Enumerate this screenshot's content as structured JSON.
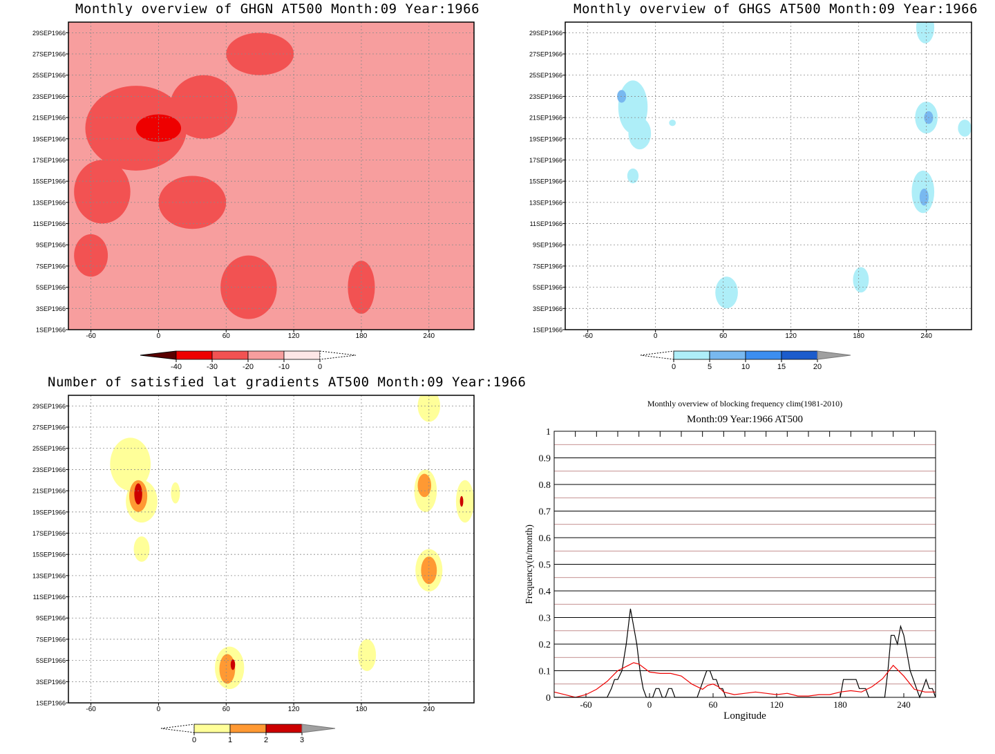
{
  "chart_data": [
    {
      "type": "heatmap",
      "title": "Monthly overview of GHGN AT500 Month:09 Year:1966",
      "xlim": [
        -80,
        280
      ],
      "x_ticks": [
        "-60",
        "0",
        "60",
        "120",
        "180",
        "240"
      ],
      "x_tick_values": [
        -60,
        0,
        60,
        120,
        180,
        240
      ],
      "y_ticks": [
        "1SEP1966",
        "3SEP1966",
        "5SEP1966",
        "7SEP1966",
        "9SEP1966",
        "11SEP1966",
        "13SEP1966",
        "15SEP1966",
        "17SEP1966",
        "19SEP1966",
        "21SEP1966",
        "23SEP1966",
        "25SEP1966",
        "27SEP1966",
        "29SEP1966"
      ],
      "y_tick_values": [
        1,
        3,
        5,
        7,
        9,
        11,
        13,
        15,
        17,
        19,
        21,
        23,
        25,
        27,
        29
      ],
      "ylim": [
        1,
        30
      ],
      "colorbar": {
        "labels": [
          "-40",
          "-30",
          "-20",
          "-10",
          "0"
        ],
        "colors": [
          "#5a0000",
          "#ee0000",
          "#f25252",
          "#f79e9e",
          "#fde6e6"
        ]
      },
      "blobs": [
        {
          "level": 1,
          "x": 200,
          "y": 24,
          "rx": 40,
          "ry": 4
        },
        {
          "level": 1,
          "x": 150,
          "y": 13,
          "rx": 35,
          "ry": 4
        },
        {
          "level": 1,
          "x": 100,
          "y": 7,
          "rx": 20,
          "ry": 2
        },
        {
          "level": 2,
          "x": -20,
          "y": 20,
          "rx": 45,
          "ry": 4
        },
        {
          "level": 2,
          "x": 40,
          "y": 22,
          "rx": 30,
          "ry": 3
        },
        {
          "level": 2,
          "x": -50,
          "y": 14,
          "rx": 25,
          "ry": 3
        },
        {
          "level": 2,
          "x": 30,
          "y": 13,
          "rx": 30,
          "ry": 2.5
        },
        {
          "level": 2,
          "x": 80,
          "y": 5,
          "rx": 25,
          "ry": 3
        },
        {
          "level": 2,
          "x": -60,
          "y": 8,
          "rx": 15,
          "ry": 2
        },
        {
          "level": 2,
          "x": 180,
          "y": 5,
          "rx": 12,
          "ry": 2.5
        },
        {
          "level": 2,
          "x": 90,
          "y": 27,
          "rx": 30,
          "ry": 2
        },
        {
          "level": 3,
          "x": 0,
          "y": 20,
          "rx": 20,
          "ry": 1.3
        }
      ]
    },
    {
      "type": "heatmap",
      "title": "Monthly overview of GHGS AT500 Month:09 Year:1966",
      "xlim": [
        -80,
        280
      ],
      "x_ticks": [
        "-60",
        "0",
        "60",
        "120",
        "180",
        "240"
      ],
      "x_tick_values": [
        -60,
        0,
        60,
        120,
        180,
        240
      ],
      "y_ticks": [
        "1SEP1966",
        "3SEP1966",
        "5SEP1966",
        "7SEP1966",
        "9SEP1966",
        "11SEP1966",
        "13SEP1966",
        "15SEP1966",
        "17SEP1966",
        "19SEP1966",
        "21SEP1966",
        "23SEP1966",
        "25SEP1966",
        "27SEP1966",
        "29SEP1966"
      ],
      "y_tick_values": [
        1,
        3,
        5,
        7,
        9,
        11,
        13,
        15,
        17,
        19,
        21,
        23,
        25,
        27,
        29
      ],
      "ylim": [
        1,
        30
      ],
      "colorbar": {
        "labels": [
          "0",
          "5",
          "10",
          "15",
          "20"
        ],
        "colors": [
          "#aeeef8",
          "#78b8f0",
          "#3c8ef0",
          "#1c5ccc",
          "#a0a0a0"
        ]
      },
      "blobs": [
        {
          "level": 1,
          "x": -20,
          "y": 22,
          "rx": 13,
          "ry": 2.5
        },
        {
          "level": 1,
          "x": -14,
          "y": 19.5,
          "rx": 10,
          "ry": 1.5
        },
        {
          "level": 1,
          "x": -20,
          "y": 15.5,
          "rx": 5,
          "ry": 0.7
        },
        {
          "level": 1,
          "x": 15,
          "y": 20.5,
          "rx": 3,
          "ry": 0.3
        },
        {
          "level": 1,
          "x": 240,
          "y": 21,
          "rx": 10,
          "ry": 1.5
        },
        {
          "level": 1,
          "x": 237,
          "y": 14,
          "rx": 10,
          "ry": 2
        },
        {
          "level": 1,
          "x": 63,
          "y": 4.5,
          "rx": 10,
          "ry": 1.5
        },
        {
          "level": 1,
          "x": 182,
          "y": 5.7,
          "rx": 7,
          "ry": 1.2
        },
        {
          "level": 1,
          "x": 274,
          "y": 20,
          "rx": 6,
          "ry": 0.8
        },
        {
          "level": 1,
          "x": 239,
          "y": 29.5,
          "rx": 8,
          "ry": 1.5
        },
        {
          "level": 2,
          "x": -30,
          "y": 23,
          "rx": 4,
          "ry": 0.6
        },
        {
          "level": 2,
          "x": 242,
          "y": 21,
          "rx": 4,
          "ry": 0.6
        },
        {
          "level": 2,
          "x": 238,
          "y": 13.5,
          "rx": 4,
          "ry": 0.8
        }
      ]
    },
    {
      "type": "heatmap",
      "title": "Number of satisfied lat gradients AT500 Month:09 Year:1966",
      "xlim": [
        -80,
        280
      ],
      "x_ticks": [
        "-60",
        "0",
        "60",
        "120",
        "180",
        "240"
      ],
      "x_tick_values": [
        -60,
        0,
        60,
        120,
        180,
        240
      ],
      "y_ticks": [
        "1SEP1966",
        "3SEP1966",
        "5SEP1966",
        "7SEP1966",
        "9SEP1966",
        "11SEP1966",
        "13SEP1966",
        "15SEP1966",
        "17SEP1966",
        "19SEP1966",
        "21SEP1966",
        "23SEP1966",
        "25SEP1966",
        "27SEP1966",
        "29SEP1966"
      ],
      "y_tick_values": [
        1,
        3,
        5,
        7,
        9,
        11,
        13,
        15,
        17,
        19,
        21,
        23,
        25,
        27,
        29
      ],
      "ylim": [
        1,
        30
      ],
      "colorbar": {
        "labels": [
          "0",
          "1",
          "2",
          "3"
        ],
        "colors": [
          "#ffff99",
          "#ff9933",
          "#cc0000",
          "#a0a0a0"
        ]
      },
      "blobs": [
        {
          "level": 1,
          "x": -25,
          "y": 23.5,
          "rx": 18,
          "ry": 2.5
        },
        {
          "level": 1,
          "x": -15,
          "y": 20,
          "rx": 14,
          "ry": 2
        },
        {
          "level": 1,
          "x": -15,
          "y": 15.5,
          "rx": 7,
          "ry": 1.2
        },
        {
          "level": 1,
          "x": 15,
          "y": 20.8,
          "rx": 4,
          "ry": 1
        },
        {
          "level": 1,
          "x": 237,
          "y": 21,
          "rx": 10,
          "ry": 2
        },
        {
          "level": 1,
          "x": 240,
          "y": 13.5,
          "rx": 12,
          "ry": 2
        },
        {
          "level": 1,
          "x": 240,
          "y": 29,
          "rx": 10,
          "ry": 1.5
        },
        {
          "level": 1,
          "x": 272,
          "y": 20,
          "rx": 8,
          "ry": 2
        },
        {
          "level": 1,
          "x": 185,
          "y": 5.5,
          "rx": 8,
          "ry": 1.5
        },
        {
          "level": 1,
          "x": 63,
          "y": 4.3,
          "rx": 13,
          "ry": 2
        },
        {
          "level": 2,
          "x": -18,
          "y": 20.5,
          "rx": 8,
          "ry": 1.5
        },
        {
          "level": 2,
          "x": 236,
          "y": 21.5,
          "rx": 6,
          "ry": 1.1
        },
        {
          "level": 2,
          "x": 240,
          "y": 13.5,
          "rx": 7,
          "ry": 1.3
        },
        {
          "level": 2,
          "x": 61,
          "y": 4.2,
          "rx": 7,
          "ry": 1.4
        },
        {
          "level": 3,
          "x": -18,
          "y": 20.7,
          "rx": 3.5,
          "ry": 1
        },
        {
          "level": 3,
          "x": 66,
          "y": 4.6,
          "rx": 2,
          "ry": 0.5
        },
        {
          "level": 3,
          "x": 269,
          "y": 20,
          "rx": 1.5,
          "ry": 0.5
        }
      ]
    },
    {
      "type": "line",
      "title": "Monthly overview of blocking frequency clim(1981-2010)",
      "subtitle": "Month:09 Year:1966  AT500",
      "xlabel": "Longitude",
      "ylabel": "Frequency(n/month)",
      "xlim": [
        -90,
        270
      ],
      "ylim": [
        0,
        1
      ],
      "x_ticks": [
        "-60",
        "0",
        "60",
        "120",
        "180",
        "240"
      ],
      "x_tick_values": [
        -60,
        0,
        60,
        120,
        180,
        240
      ],
      "y_ticks": [
        "0",
        "0.1",
        "0.2",
        "0.3",
        "0.4",
        "0.5",
        "0.6",
        "0.7",
        "0.8",
        "0.9",
        "1"
      ],
      "y_tick_values": [
        0,
        0.1,
        0.2,
        0.3,
        0.4,
        0.5,
        0.6,
        0.7,
        0.8,
        0.9,
        1
      ],
      "series": [
        {
          "color": "#000000",
          "x": [
            -90,
            -40,
            -36,
            -33,
            -30,
            -26,
            -22,
            -18,
            -15,
            -12,
            -9,
            -6,
            -3,
            3,
            6,
            9,
            12,
            15,
            18,
            21,
            24,
            45,
            48,
            51,
            54,
            57,
            60,
            63,
            66,
            69,
            72,
            180,
            183,
            186,
            189,
            192,
            195,
            198,
            201,
            204,
            207,
            222,
            225,
            228,
            231,
            234,
            237,
            240,
            243,
            246,
            249,
            252,
            255,
            258,
            261,
            264,
            267,
            270
          ],
          "y": [
            0,
            0,
            0.033,
            0.067,
            0.067,
            0.1,
            0.2,
            0.333,
            0.267,
            0.2,
            0.1,
            0.033,
            0,
            0,
            0.033,
            0.033,
            0,
            0,
            0.033,
            0.033,
            0,
            0,
            0.033,
            0.067,
            0.1,
            0.1,
            0.067,
            0.067,
            0.033,
            0.033,
            0,
            0,
            0.067,
            0.067,
            0.067,
            0.067,
            0.067,
            0.033,
            0.033,
            0.033,
            0,
            0,
            0.1,
            0.233,
            0.233,
            0.2,
            0.267,
            0.233,
            0.167,
            0.1,
            0.067,
            0.033,
            0,
            0.033,
            0.067,
            0.033,
            0.033,
            0
          ]
        },
        {
          "color": "#ee0000",
          "x": [
            -90,
            -80,
            -70,
            -60,
            -50,
            -40,
            -30,
            -20,
            -15,
            -10,
            -5,
            0,
            10,
            20,
            30,
            40,
            50,
            55,
            60,
            65,
            70,
            80,
            90,
            100,
            110,
            120,
            130,
            140,
            150,
            160,
            170,
            180,
            190,
            200,
            210,
            220,
            230,
            240,
            250,
            260,
            270
          ],
          "y": [
            0.02,
            0.01,
            0.0,
            0.01,
            0.03,
            0.06,
            0.1,
            0.12,
            0.13,
            0.125,
            0.11,
            0.095,
            0.09,
            0.09,
            0.08,
            0.05,
            0.03,
            0.045,
            0.05,
            0.04,
            0.02,
            0.01,
            0.015,
            0.02,
            0.015,
            0.01,
            0.015,
            0.005,
            0.005,
            0.01,
            0.01,
            0.02,
            0.025,
            0.02,
            0.04,
            0.07,
            0.12,
            0.08,
            0.03,
            0.02,
            0.02
          ]
        }
      ]
    }
  ]
}
